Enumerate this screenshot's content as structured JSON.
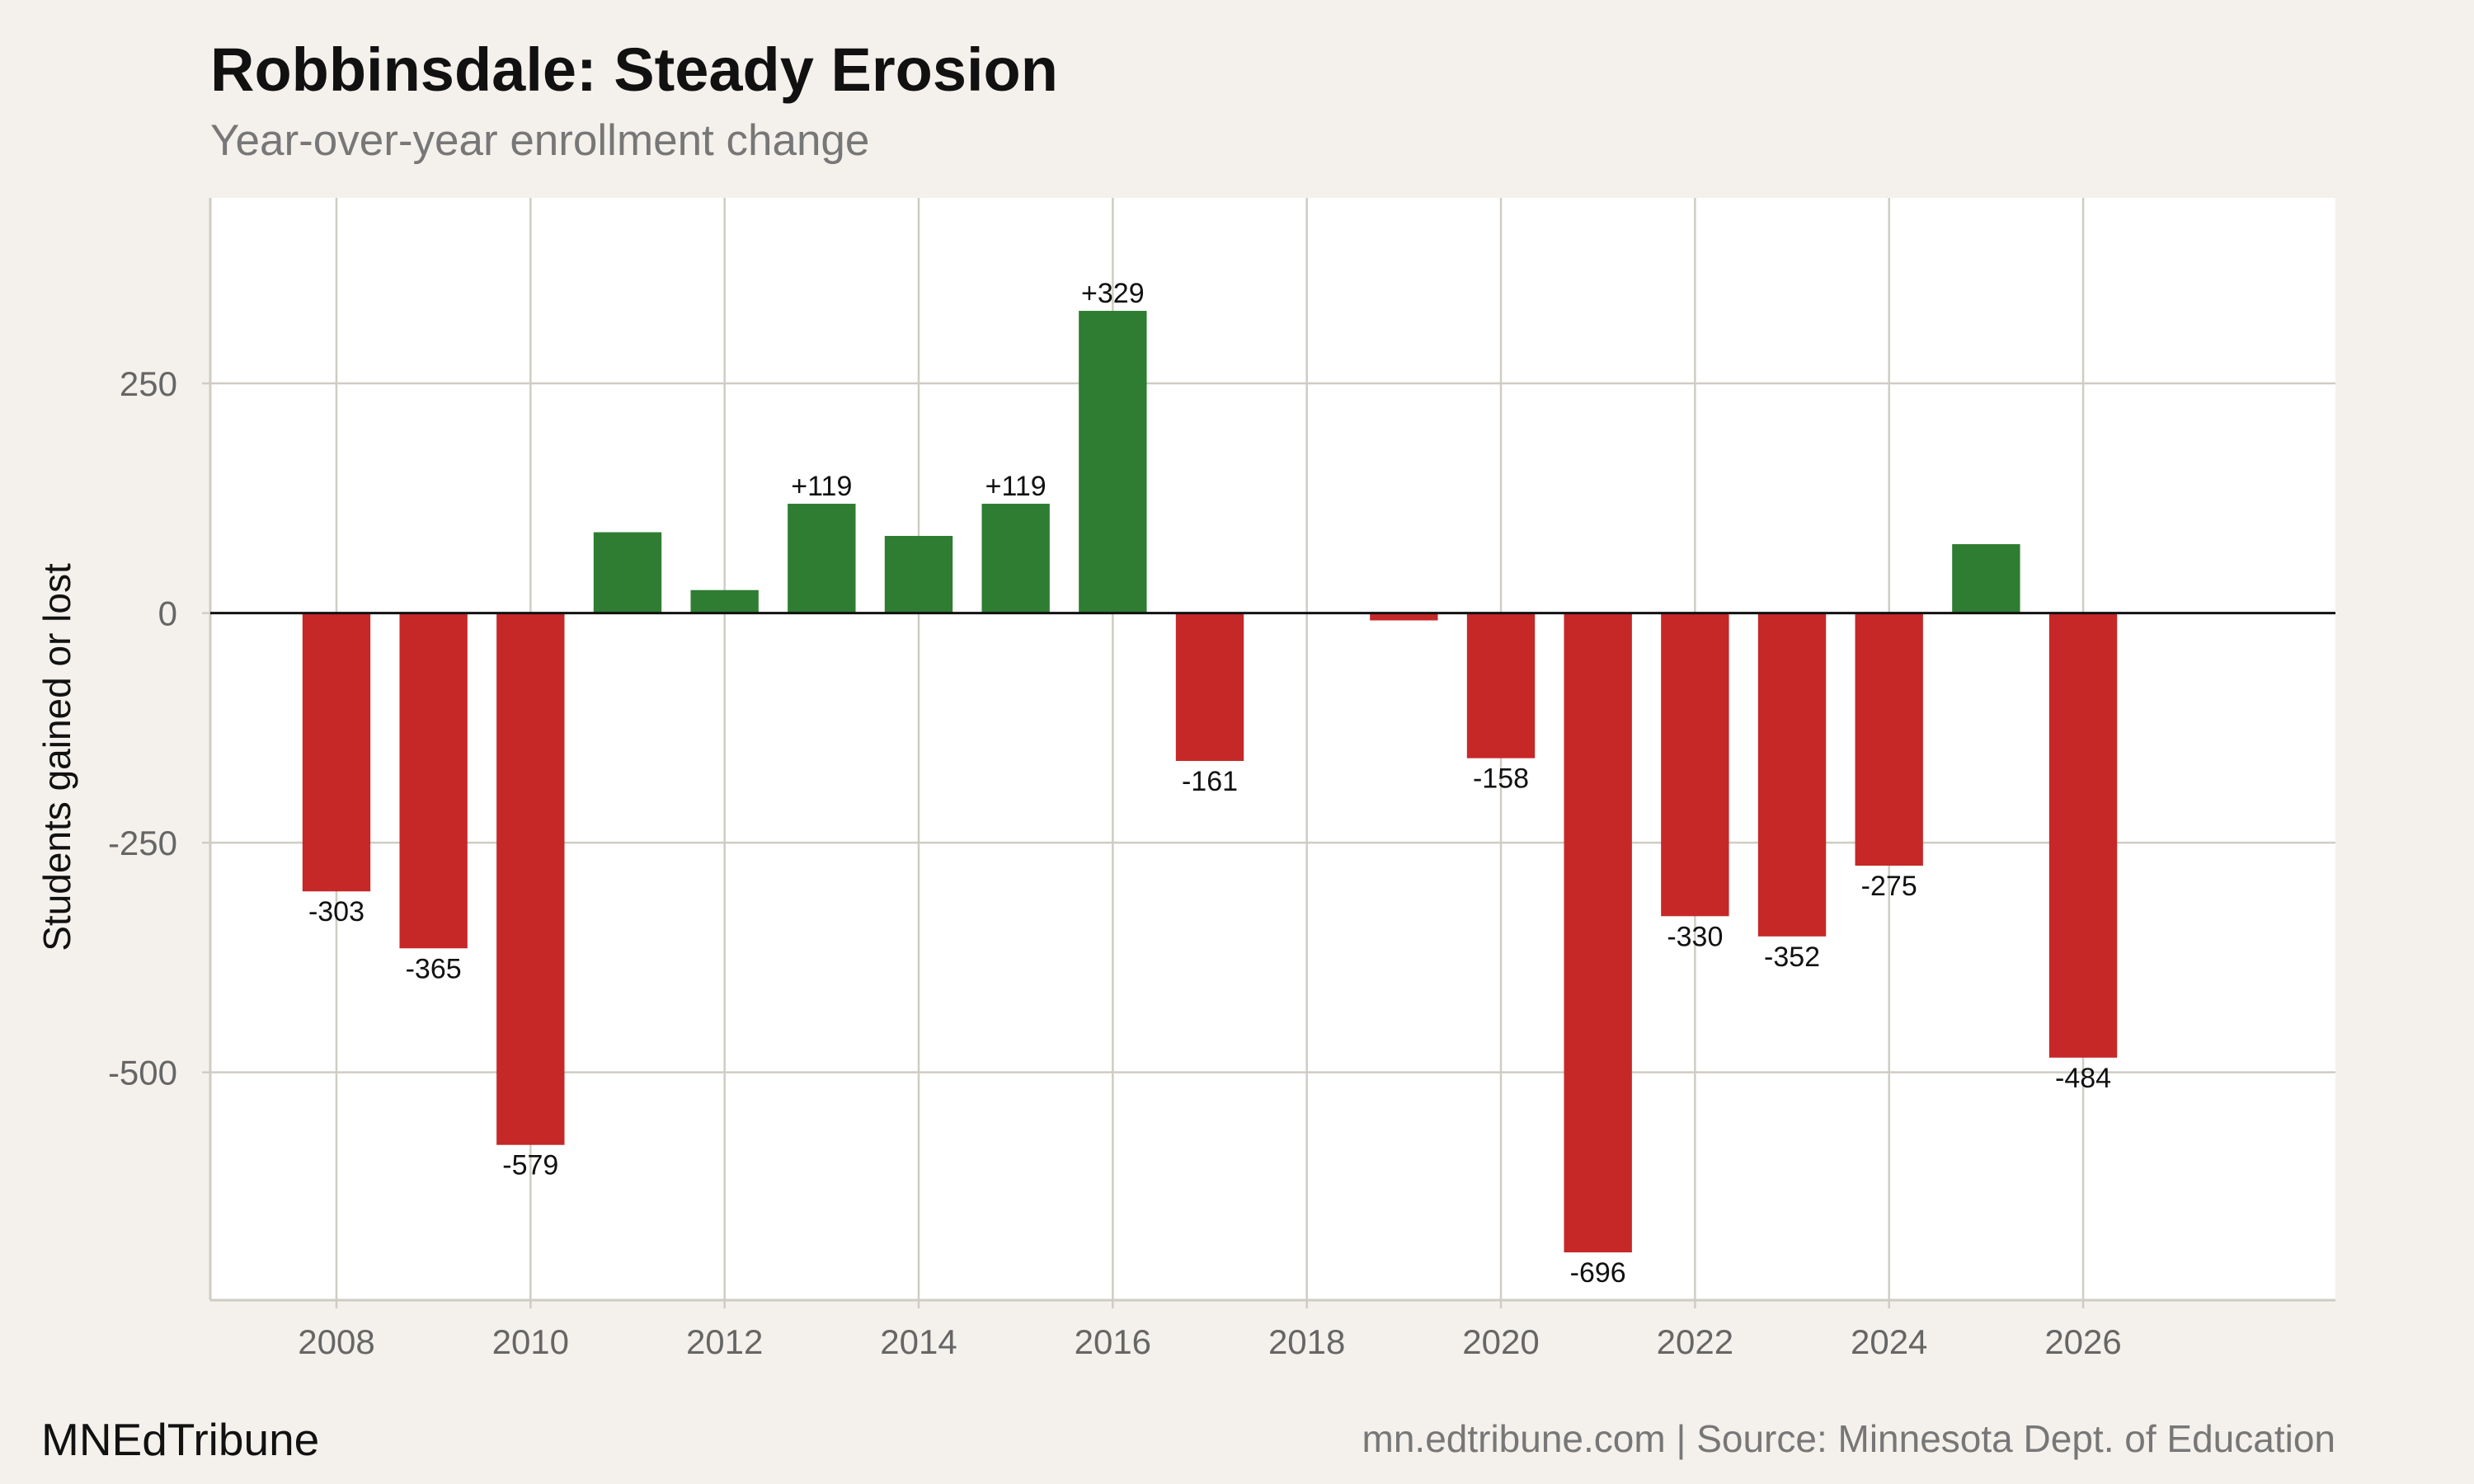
{
  "header": {
    "title": "Robbinsdale: Steady Erosion",
    "subtitle": "Year-over-year enrollment change"
  },
  "footer": {
    "brand": "MNEdTribune",
    "source": "mn.edtribune.com | Source: Minnesota Dept. of Education"
  },
  "colors": {
    "background": "#f4f1ec",
    "panel": "#ffffff",
    "gain": "#2e7d32",
    "loss": "#c62828",
    "grid": "#cfccc4",
    "zero_line": "#111111"
  },
  "chart_data": {
    "type": "bar",
    "title": "Robbinsdale: Steady Erosion",
    "subtitle": "Year-over-year enrollment change",
    "xlabel": "",
    "ylabel": "Students gained or lost",
    "xlim": [
      2006.7,
      2028.6
    ],
    "ylim": [
      -748,
      452
    ],
    "x_ticks": [
      2008,
      2010,
      2012,
      2014,
      2016,
      2018,
      2020,
      2022,
      2024,
      2026
    ],
    "y_ticks": [
      -500,
      -250,
      0,
      250
    ],
    "grid": true,
    "legend": "none",
    "bars": [
      {
        "x": 2008,
        "value": -303,
        "label": "-303"
      },
      {
        "x": 2009,
        "value": -365,
        "label": "-365"
      },
      {
        "x": 2010,
        "value": -579,
        "label": "-579"
      },
      {
        "x": 2011,
        "value": 88,
        "label": ""
      },
      {
        "x": 2012,
        "value": 25,
        "label": ""
      },
      {
        "x": 2013,
        "value": 119,
        "label": "+119"
      },
      {
        "x": 2014,
        "value": 84,
        "label": ""
      },
      {
        "x": 2015,
        "value": 119,
        "label": "+119"
      },
      {
        "x": 2016,
        "value": 329,
        "label": "+329"
      },
      {
        "x": 2017,
        "value": -161,
        "label": "-161"
      },
      {
        "x": 2019,
        "value": -8,
        "label": ""
      },
      {
        "x": 2020,
        "value": -158,
        "label": "-158"
      },
      {
        "x": 2021,
        "value": -696,
        "label": "-696"
      },
      {
        "x": 2022,
        "value": -330,
        "label": "-330"
      },
      {
        "x": 2023,
        "value": -352,
        "label": "-352"
      },
      {
        "x": 2024,
        "value": -275,
        "label": "-275"
      },
      {
        "x": 2025,
        "value": 75,
        "label": ""
      },
      {
        "x": 2026,
        "value": -484,
        "label": "-484"
      }
    ]
  }
}
